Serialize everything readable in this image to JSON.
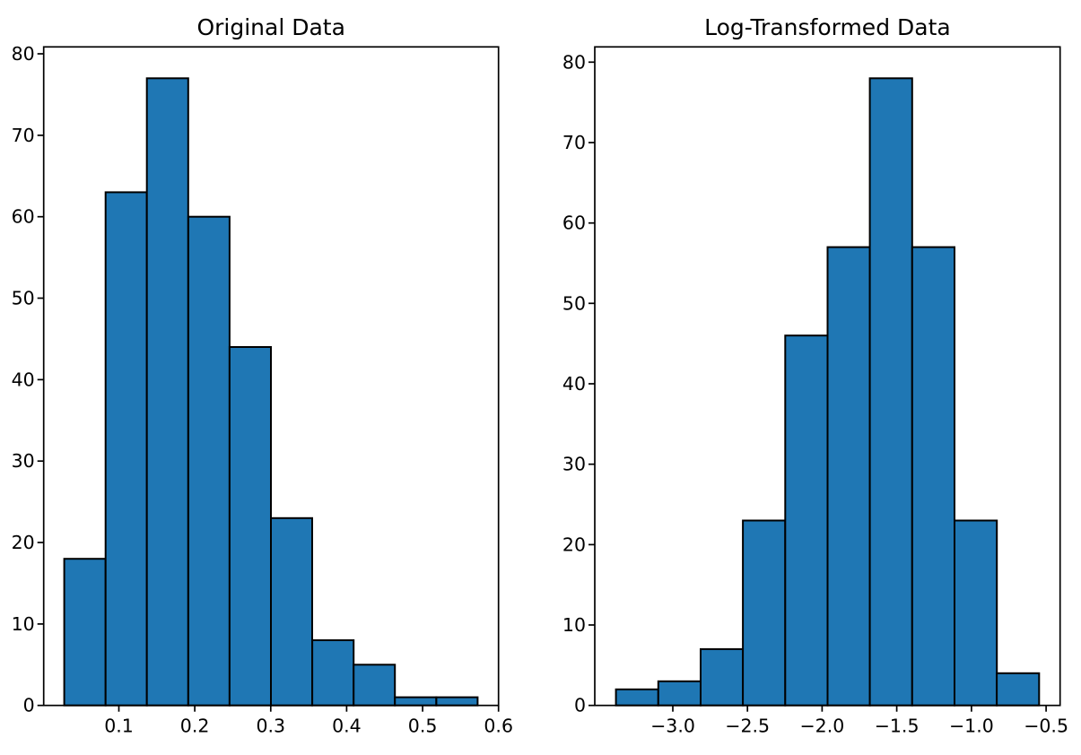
{
  "figure": {
    "background_color": "#ffffff",
    "text_color": "#000000"
  },
  "chart_data": [
    {
      "type": "bar",
      "subtype": "histogram",
      "title": "Original Data",
      "counts": [
        18,
        63,
        77,
        60,
        44,
        23,
        8,
        5,
        1,
        1
      ],
      "bin_edges": [
        0.028,
        0.0825,
        0.1369,
        0.1914,
        0.2458,
        0.3003,
        0.3547,
        0.4092,
        0.4636,
        0.5181,
        0.5725
      ],
      "xlim": [
        0.001,
        0.6
      ],
      "ylim": [
        0,
        80.85
      ],
      "x_ticks": [
        0.1,
        0.2,
        0.3,
        0.4,
        0.5,
        0.6
      ],
      "x_tick_labels": [
        "0.1",
        "0.2",
        "0.3",
        "0.4",
        "0.5",
        "0.6"
      ],
      "y_ticks": [
        0,
        10,
        20,
        30,
        40,
        50,
        60,
        70,
        80
      ],
      "y_tick_labels": [
        "0",
        "10",
        "20",
        "30",
        "40",
        "50",
        "60",
        "70",
        "80"
      ],
      "xlabel": "",
      "ylabel": "",
      "grid": false,
      "legend": null,
      "bar_color": "#1f77b4",
      "bar_edge_color": "#000000"
    },
    {
      "type": "bar",
      "subtype": "histogram",
      "title": "Log-Transformed Data",
      "counts": [
        2,
        3,
        7,
        23,
        46,
        57,
        78,
        57,
        23,
        4
      ],
      "bin_edges": [
        -3.381,
        -3.0976,
        -2.8141,
        -2.5307,
        -2.2472,
        -1.9638,
        -1.6803,
        -1.3969,
        -1.1134,
        -0.83,
        -0.5465
      ],
      "xlim": [
        -3.523,
        -0.406
      ],
      "ylim": [
        0,
        81.9
      ],
      "x_ticks": [
        -3.0,
        -2.5,
        -2.0,
        -1.5,
        -1.0,
        -0.5
      ],
      "x_tick_labels": [
        "−3.0",
        "−2.5",
        "−2.0",
        "−1.5",
        "−1.0",
        "−0.5"
      ],
      "y_ticks": [
        0,
        10,
        20,
        30,
        40,
        50,
        60,
        70,
        80
      ],
      "y_tick_labels": [
        "0",
        "10",
        "20",
        "30",
        "40",
        "50",
        "60",
        "70",
        "80"
      ],
      "xlabel": "",
      "ylabel": "",
      "grid": false,
      "legend": null,
      "bar_color": "#1f77b4",
      "bar_edge_color": "#000000"
    }
  ]
}
